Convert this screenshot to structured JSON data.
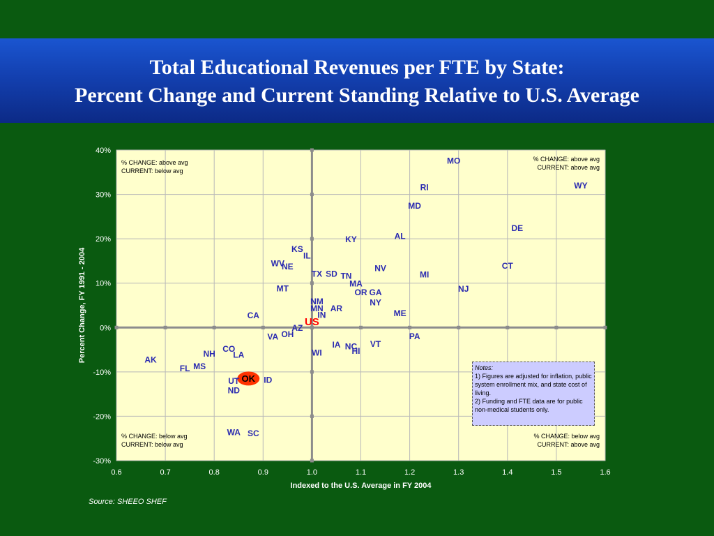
{
  "title": {
    "line1": "Total Educational Revenues per FTE by State:",
    "line2": "Percent Change and Current Standing Relative to U.S. Average"
  },
  "colors": {
    "background": "#0a5a10",
    "plot_area": "#ffffcc",
    "title_band": "#1340b0",
    "state_label": "#2b2bb0",
    "us_label": "#ff0000",
    "highlight": "#ff3300",
    "notes_box": "#ccccff"
  },
  "quadrants": {
    "top_left": [
      "% CHANGE: above avg",
      "CURRENT: below avg"
    ],
    "top_right": [
      "% CHANGE: above avg",
      "CURRENT: above avg"
    ],
    "bottom_left": [
      "% CHANGE: below avg",
      "CURRENT: below avg"
    ],
    "bottom_right": [
      "% CHANGE: below avg",
      "CURRENT: above avg"
    ]
  },
  "notes": {
    "title": "Notes:",
    "line1": "1) Figures are adjusted for inflation, public system enrollment mix, and state cost of living.",
    "line2": "2) Funding and FTE data are for public non-medical students only."
  },
  "source": "Source:  SHEEO SHEF",
  "chart_data": {
    "type": "scatter",
    "xlabel": "Indexed to the U.S. Average in FY 2004",
    "ylabel": "Percent Change, FY 1991 - 2004",
    "xlim": [
      0.6,
      1.6
    ],
    "ylim": [
      -30,
      40
    ],
    "x_ticks": [
      "0.6",
      "0.7",
      "0.8",
      "0.9",
      "1.0",
      "1.1",
      "1.2",
      "1.3",
      "1.4",
      "1.5",
      "1.6"
    ],
    "y_ticks": [
      "40%",
      "30%",
      "20%",
      "10%",
      "0%",
      "-10%",
      "-20%",
      "-30%"
    ],
    "grid": true,
    "reference_lines": {
      "x": 1.0,
      "y": 0
    },
    "points": [
      {
        "label": "MO",
        "x": 1.29,
        "y": 37.6
      },
      {
        "label": "WY",
        "x": 1.55,
        "y": 32.0
      },
      {
        "label": "RI",
        "x": 1.23,
        "y": 31.6
      },
      {
        "label": "MD",
        "x": 1.21,
        "y": 27.4
      },
      {
        "label": "DE",
        "x": 1.42,
        "y": 22.4
      },
      {
        "label": "AL",
        "x": 1.18,
        "y": 20.6
      },
      {
        "label": "KY",
        "x": 1.08,
        "y": 19.9
      },
      {
        "label": "KS",
        "x": 0.97,
        "y": 17.7
      },
      {
        "label": "IL",
        "x": 0.99,
        "y": 16.2
      },
      {
        "label": "WV",
        "x": 0.93,
        "y": 14.4
      },
      {
        "label": "NE",
        "x": 0.95,
        "y": 13.7
      },
      {
        "label": "CT",
        "x": 1.4,
        "y": 13.9
      },
      {
        "label": "NV",
        "x": 1.14,
        "y": 13.3
      },
      {
        "label": "TX",
        "x": 1.01,
        "y": 12.1
      },
      {
        "label": "SD",
        "x": 1.04,
        "y": 12.1
      },
      {
        "label": "TN",
        "x": 1.07,
        "y": 11.6
      },
      {
        "label": "MI",
        "x": 1.23,
        "y": 11.9
      },
      {
        "label": "MA",
        "x": 1.09,
        "y": 9.9
      },
      {
        "label": "MT",
        "x": 0.94,
        "y": 8.8
      },
      {
        "label": "NJ",
        "x": 1.31,
        "y": 8.7
      },
      {
        "label": "OR",
        "x": 1.1,
        "y": 7.9
      },
      {
        "label": "GA",
        "x": 1.13,
        "y": 7.9
      },
      {
        "label": "NY",
        "x": 1.13,
        "y": 5.6
      },
      {
        "label": "NM",
        "x": 1.01,
        "y": 5.9
      },
      {
        "label": "MN",
        "x": 1.01,
        "y": 4.3
      },
      {
        "label": "AR",
        "x": 1.05,
        "y": 4.3
      },
      {
        "label": "IN",
        "x": 1.02,
        "y": 2.8
      },
      {
        "label": "ME",
        "x": 1.18,
        "y": 3.2
      },
      {
        "label": "CA",
        "x": 0.88,
        "y": 2.7
      },
      {
        "label": "US",
        "x": 1.0,
        "y": 1.3
      },
      {
        "label": "AZ",
        "x": 0.97,
        "y": -0.1
      },
      {
        "label": "OH",
        "x": 0.95,
        "y": -1.5
      },
      {
        "label": "VA",
        "x": 0.92,
        "y": -2.1
      },
      {
        "label": "PA",
        "x": 1.21,
        "y": -2.0
      },
      {
        "label": "IA",
        "x": 1.05,
        "y": -3.9
      },
      {
        "label": "VT",
        "x": 1.13,
        "y": -3.7
      },
      {
        "label": "NC",
        "x": 1.08,
        "y": -4.3
      },
      {
        "label": "HI",
        "x": 1.09,
        "y": -5.3
      },
      {
        "label": "WI",
        "x": 1.01,
        "y": -5.7
      },
      {
        "label": "CO",
        "x": 0.83,
        "y": -4.8
      },
      {
        "label": "NH",
        "x": 0.79,
        "y": -5.9
      },
      {
        "label": "LA",
        "x": 0.85,
        "y": -6.2
      },
      {
        "label": "AK",
        "x": 0.67,
        "y": -7.3
      },
      {
        "label": "FL",
        "x": 0.74,
        "y": -9.2
      },
      {
        "label": "MS",
        "x": 0.77,
        "y": -8.8
      },
      {
        "label": "OK",
        "x": 0.87,
        "y": -11.5
      },
      {
        "label": "ID",
        "x": 0.91,
        "y": -11.8
      },
      {
        "label": "UT",
        "x": 0.84,
        "y": -12.1
      },
      {
        "label": "ND",
        "x": 0.84,
        "y": -14.2
      },
      {
        "label": "WA",
        "x": 0.84,
        "y": -23.6
      },
      {
        "label": "SC",
        "x": 0.88,
        "y": -23.9
      }
    ],
    "highlighted_point": "OK"
  }
}
